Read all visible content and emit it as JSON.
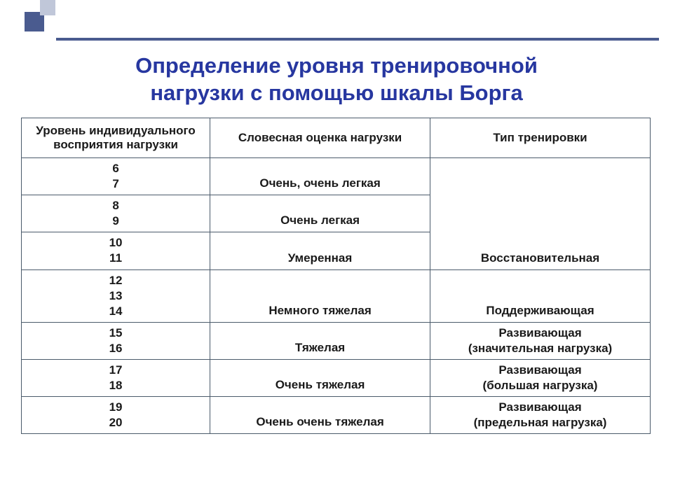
{
  "colors": {
    "accent_dark": "#4a5b8f",
    "accent_light": "#c0c7d9",
    "title_color": "#2737a0",
    "border_color": "#4a5a6a",
    "text_color": "#1a1a1a",
    "background": "#ffffff"
  },
  "title": {
    "line1": "Определение уровня тренировочной",
    "line2": "нагрузки с помощью шкалы Борга"
  },
  "table": {
    "headers": {
      "level": "Уровень индивидуального восприятия нагрузки",
      "verbal": "Словесная оценка нагрузки",
      "type": "Тип тренировки"
    },
    "rows": [
      {
        "levels": [
          "6",
          "7"
        ],
        "verbal": "Очень, очень легкая"
      },
      {
        "levels": [
          "8",
          "9"
        ],
        "verbal": "Очень легкая"
      },
      {
        "levels": [
          "10",
          "11"
        ],
        "verbal": "Умеренная"
      },
      {
        "levels": [
          "12",
          "13",
          "14"
        ],
        "verbal": "Немного тяжелая"
      },
      {
        "levels": [
          "15",
          "16"
        ],
        "verbal": "Тяжелая"
      },
      {
        "levels": [
          "17",
          "18"
        ],
        "verbal": "Очень тяжелая"
      },
      {
        "levels": [
          "19",
          "20"
        ],
        "verbal": "Очень очень тяжелая"
      }
    ],
    "types": {
      "t1": "Восстановительная",
      "t2": "Поддерживающая",
      "t3_line1": "Развивающая",
      "t3_line2": "(значительная нагрузка)",
      "t4_line1": "Развивающая",
      "t4_line2": "(большая нагрузка)",
      "t5_line1": "Развивающая",
      "t5_line2": "(предельная нагрузка)"
    }
  }
}
